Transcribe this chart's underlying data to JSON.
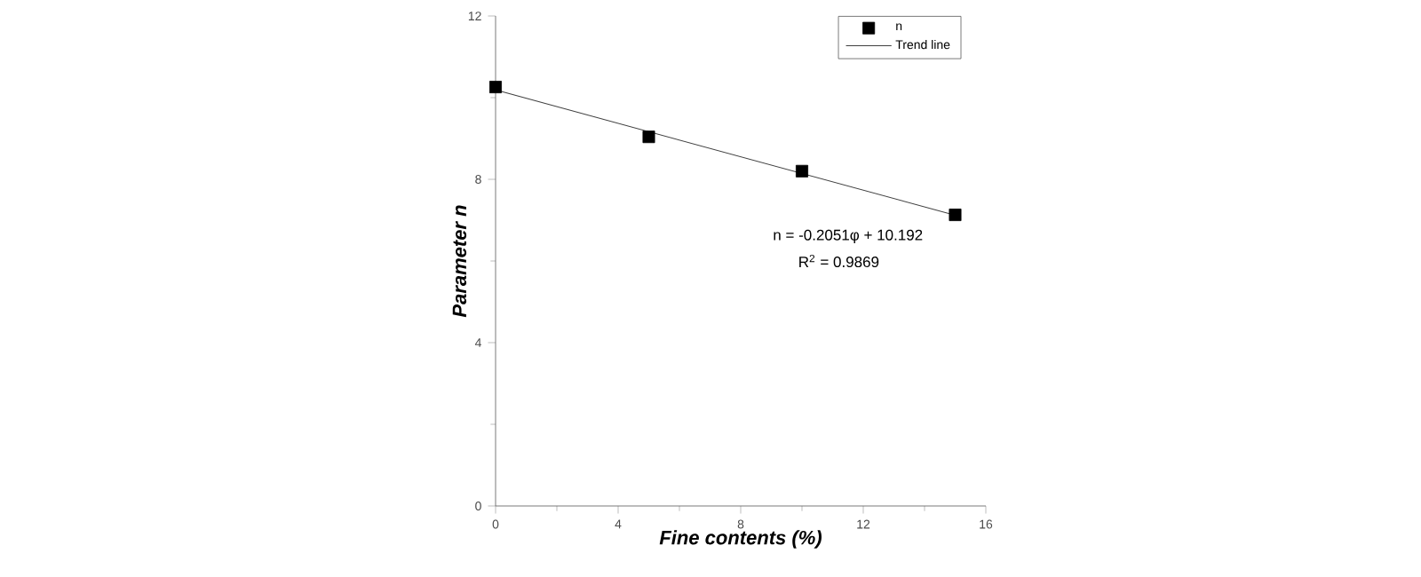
{
  "chart_data": {
    "type": "line",
    "xlabel": "Fine contents (%)",
    "ylabel": "Parameter n",
    "xlim": [
      0,
      16
    ],
    "ylim": [
      0,
      12
    ],
    "xticks": [
      0,
      4,
      8,
      12,
      16
    ],
    "yticks": [
      0,
      4,
      8,
      12
    ],
    "legend": "top right",
    "series": [
      {
        "name": "n",
        "type": "scatter",
        "marker": "square",
        "color": "#000000",
        "x": [
          0,
          5,
          10,
          15
        ],
        "values": [
          10.26,
          9.04,
          8.2,
          7.13
        ]
      },
      {
        "name": "Trend line",
        "color": "#404040",
        "x": [
          0,
          15
        ],
        "values": [
          10.19,
          7.12
        ]
      }
    ],
    "annotations": [
      "n = -0.2051φ + 10.192",
      "R$^{2}$ = 0.9869"
    ]
  }
}
